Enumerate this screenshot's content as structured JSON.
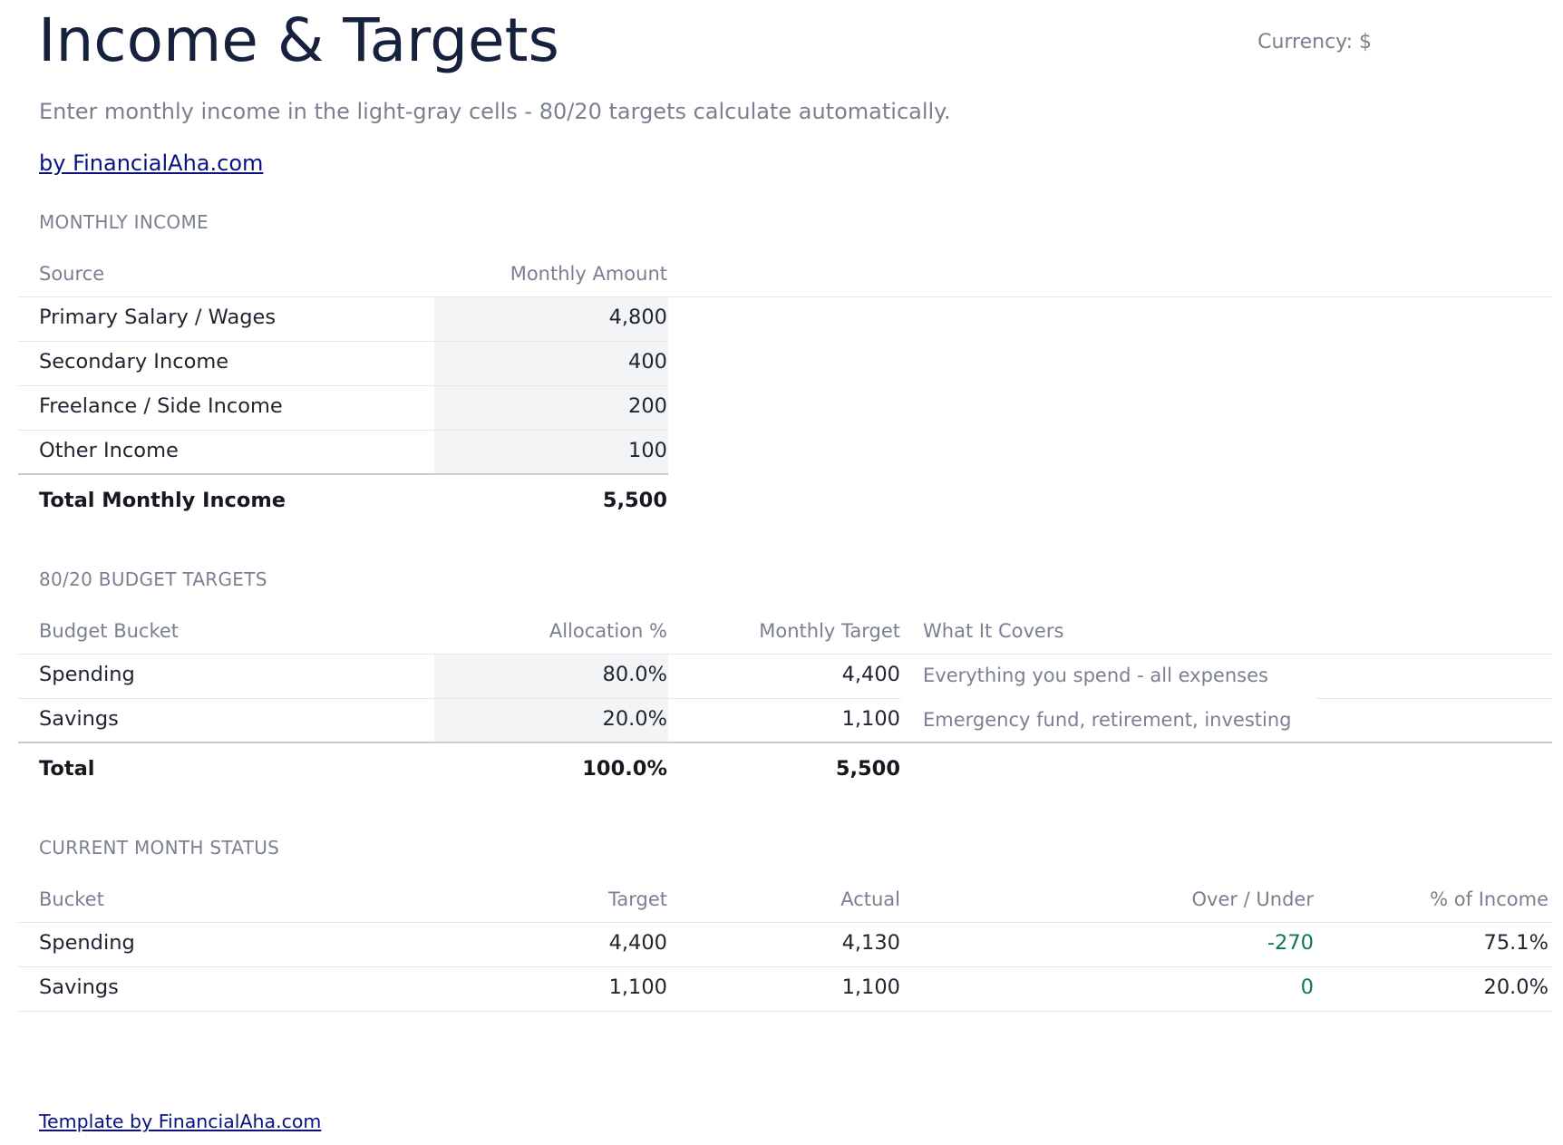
{
  "header": {
    "title": "Income & Targets",
    "currency": "Currency: $",
    "subtitle": "Enter monthly income in the light-gray cells - 80/20 targets calculate automatically.",
    "byline": "by FinancialAha.com"
  },
  "income": {
    "section_label": "MONTHLY INCOME",
    "columns": [
      "Source",
      "Monthly Amount"
    ],
    "rows": [
      {
        "source": "Primary Salary / Wages",
        "amount": "4,800"
      },
      {
        "source": "Secondary Income",
        "amount": "400"
      },
      {
        "source": "Freelance / Side Income",
        "amount": "200"
      },
      {
        "source": "Other Income",
        "amount": "100"
      }
    ],
    "total": {
      "label": "Total Monthly Income",
      "amount": "5,500"
    }
  },
  "targets": {
    "section_label": "80/20 BUDGET TARGETS",
    "columns": [
      "Budget Bucket",
      "Allocation %",
      "Monthly Target",
      "What It Covers"
    ],
    "rows": [
      {
        "bucket": "Spending",
        "allocation": "80.0%",
        "target": "4,400",
        "covers": "Everything you spend - all expenses"
      },
      {
        "bucket": "Savings",
        "allocation": "20.0%",
        "target": "1,100",
        "covers": "Emergency fund, retirement, investing"
      }
    ],
    "total": {
      "label": "Total",
      "allocation": "100.0%",
      "target": "5,500"
    }
  },
  "status": {
    "section_label": "CURRENT MONTH STATUS",
    "columns": [
      "Bucket",
      "Target",
      "Actual",
      "Over / Under",
      "% of Income"
    ],
    "rows": [
      {
        "bucket": "Spending",
        "target": "4,400",
        "actual": "4,130",
        "over_under": "-270",
        "pct_income": "75.1%"
      },
      {
        "bucket": "Savings",
        "target": "1,100",
        "actual": "1,100",
        "over_under": "0",
        "pct_income": "20.0%"
      }
    ]
  },
  "footer": {
    "link": "Template by FinancialAha.com"
  },
  "colors": {
    "title": "#16213e",
    "muted": "#7a8090",
    "link": "#0c1180",
    "positive": "#0b7a52",
    "input_shade": "#f3f4f6"
  }
}
